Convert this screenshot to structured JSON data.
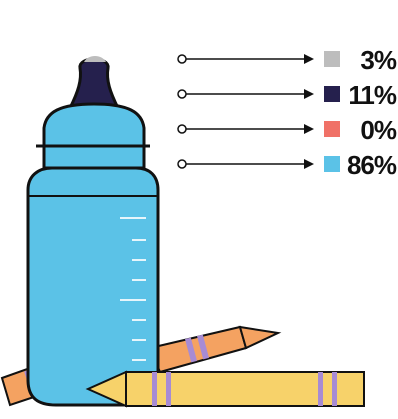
{
  "chart_data": {
    "type": "pie",
    "series": [
      {
        "label": "3%",
        "value": 3,
        "color": "#bdbdbd"
      },
      {
        "label": "11%",
        "value": 11,
        "color": "#25204d"
      },
      {
        "label": "0%",
        "value": 0,
        "color": "#f07167"
      },
      {
        "label": "86%",
        "value": 86,
        "color": "#5bc2e7"
      }
    ],
    "legend_placement": "right"
  },
  "illustration": {
    "bottle_color": "#5bc2e7",
    "nipple_color": "#25204d",
    "cap_color": "#bdbdbd",
    "crayon_orange": "#f4a261",
    "crayon_yellow": "#f7d26a",
    "crayon_stripe": "#a78bd4"
  }
}
